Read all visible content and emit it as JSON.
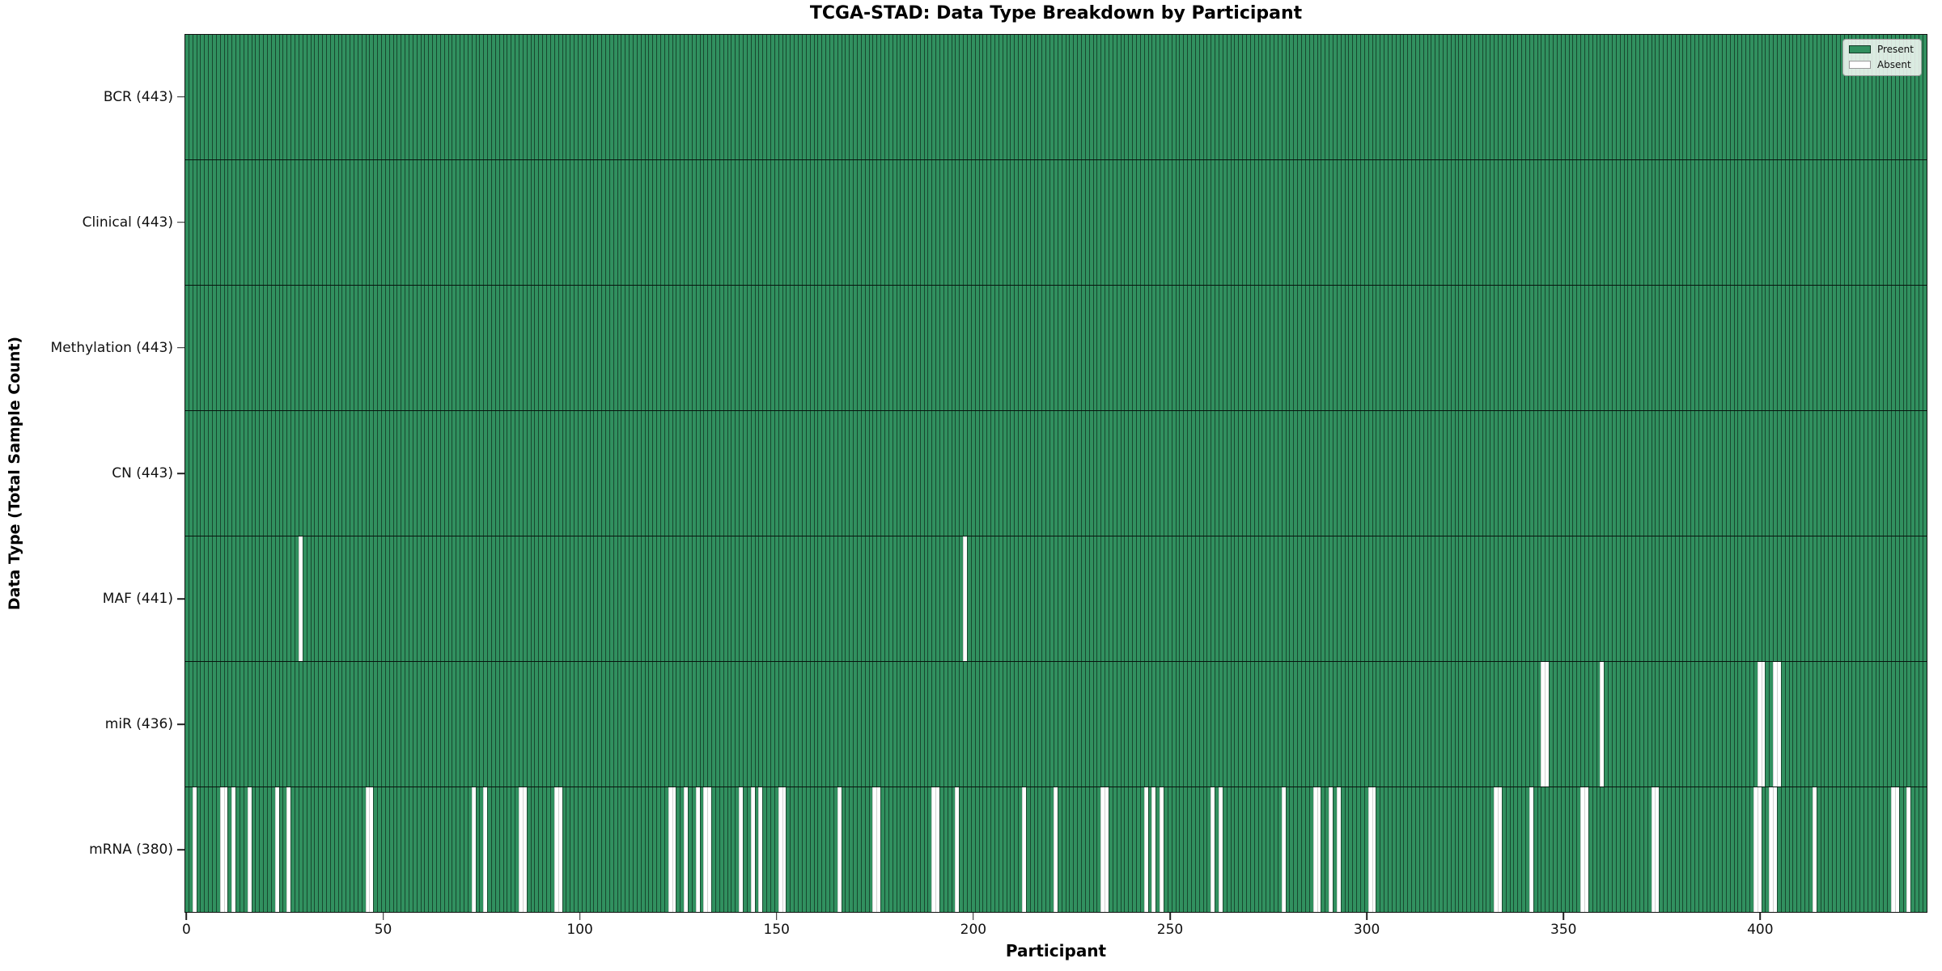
{
  "title": "TCGA-STAD: Data Type Breakdown by Participant",
  "x_axis_title": "Participant",
  "y_axis_title": "Data Type (Total Sample Count)",
  "legend": {
    "position": "upper right",
    "entries": [
      {
        "label": "Present",
        "color": "#31905f"
      },
      {
        "label": "Absent",
        "color": "#ffffff"
      }
    ]
  },
  "colors": {
    "present": "#31905f",
    "absent": "#ffffff",
    "bar_edge": "#1c3a28",
    "spine": "#111111",
    "legend_background": "#f4f8f4"
  },
  "chart_data": {
    "type": "heatmap",
    "title": "TCGA-STAD: Data Type Breakdown by Participant",
    "xlabel": "Participant",
    "ylabel": "Data Type (Total Sample Count)",
    "n_participants": 443,
    "x_ticks": [
      0,
      50,
      100,
      150,
      200,
      250,
      300,
      350,
      400
    ],
    "xlim": [
      -0.5,
      443
    ],
    "grid": false,
    "legend_entries": [
      "Present",
      "Absent"
    ],
    "rows": [
      {
        "data_type": "BCR",
        "label": "BCR (443)",
        "present_count": 443,
        "absent_count": 0,
        "absent_participants": []
      },
      {
        "data_type": "Clinical",
        "label": "Clinical (443)",
        "present_count": 443,
        "absent_count": 0,
        "absent_participants": []
      },
      {
        "data_type": "Methylation",
        "label": "Methylation (443)",
        "present_count": 443,
        "absent_count": 0,
        "absent_participants": []
      },
      {
        "data_type": "CN",
        "label": "CN (443)",
        "present_count": 443,
        "absent_count": 0,
        "absent_participants": []
      },
      {
        "data_type": "MAF",
        "label": "MAF (441)",
        "present_count": 441,
        "absent_count": 2,
        "absent_participants": [
          29,
          198
        ]
      },
      {
        "data_type": "miR",
        "label": "miR (436)",
        "present_count": 436,
        "absent_count": 7,
        "absent_participants": [
          345,
          346,
          360,
          400,
          401,
          404,
          405
        ]
      },
      {
        "data_type": "mRNA",
        "label": "mRNA (380)",
        "present_count": 380,
        "absent_count": 63,
        "absent_participants": [
          2,
          9,
          10,
          12,
          16,
          23,
          26,
          46,
          47,
          73,
          76,
          85,
          86,
          94,
          95,
          123,
          124,
          127,
          130,
          132,
          133,
          141,
          144,
          146,
          151,
          152,
          166,
          175,
          176,
          190,
          191,
          196,
          213,
          221,
          233,
          234,
          244,
          246,
          248,
          261,
          263,
          279,
          287,
          288,
          291,
          293,
          301,
          302,
          333,
          334,
          342,
          355,
          356,
          373,
          374,
          399,
          400,
          403,
          404,
          414,
          434,
          435,
          438
        ]
      }
    ]
  }
}
